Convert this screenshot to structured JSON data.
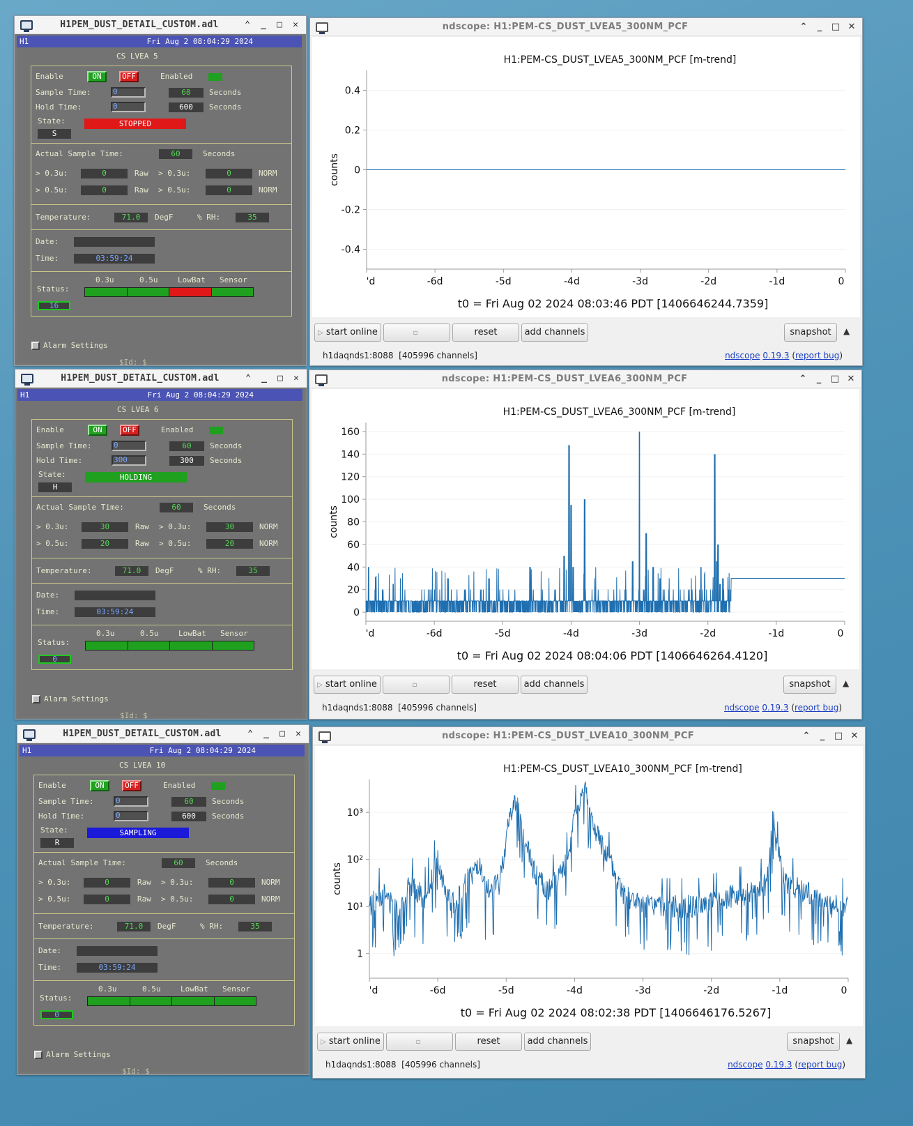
{
  "medm": [
    {
      "title": "H1PEM_DUST_DETAIL_CUSTOM.adl",
      "site": "H1",
      "datetime": "Fri Aug  2 08:04:29 2024",
      "section": "CS LVEA 5",
      "labels": {
        "enable": "Enable",
        "on": "ON",
        "off": "OFF",
        "enabled": "Enabled",
        "sample_time": "Sample Time:",
        "hold_time": "Hold Time:",
        "state": "State:",
        "seconds": "Seconds",
        "actual_sample": "Actual Sample Time:",
        "p03": "> 0.3u:",
        "p05": "> 0.5u:",
        "raw": "Raw",
        "norm": "NORM",
        "temperature": "Temperature:",
        "degf": "DegF",
        "rh": "% RH:",
        "date": "Date:",
        "time": "Time:",
        "status": "Status:",
        "s03": "0.3u",
        "s05": "0.5u",
        "lowbat": "LowBat",
        "sensor": "Sensor",
        "alarm": "Alarm Settings",
        "id": "$Id: $"
      },
      "sample_input": "0",
      "sample_value": "60",
      "hold_input": "0",
      "hold_value": "600",
      "state_text": "STOPPED",
      "state_color": "#e01818",
      "state_letter": "S",
      "actual": "60",
      "raw03": "0",
      "norm03": "0",
      "raw05": "0",
      "norm05": "0",
      "temp": "71.0",
      "rh": "35",
      "date_val": "",
      "time_val": "03:59:24",
      "status_colors": [
        "#1fa01f",
        "#1fa01f",
        "#e01818",
        "#1fa01f"
      ],
      "status_count": "16"
    },
    {
      "title": "H1PEM_DUST_DETAIL_CUSTOM.adl",
      "site": "H1",
      "datetime": "Fri Aug  2 08:04:29 2024",
      "section": "CS LVEA 6",
      "labels": {
        "enable": "Enable",
        "on": "ON",
        "off": "OFF",
        "enabled": "Enabled",
        "sample_time": "Sample Time:",
        "hold_time": "Hold Time:",
        "state": "State:",
        "seconds": "Seconds",
        "actual_sample": "Actual Sample Time:",
        "p03": "> 0.3u:",
        "p05": "> 0.5u:",
        "raw": "Raw",
        "norm": "NORM",
        "temperature": "Temperature:",
        "degf": "DegF",
        "rh": "% RH:",
        "date": "Date:",
        "time": "Time:",
        "status": "Status:",
        "s03": "0.3u",
        "s05": "0.5u",
        "lowbat": "LowBat",
        "sensor": "Sensor",
        "alarm": "Alarm Settings",
        "id": "$Id: $"
      },
      "sample_input": "0",
      "sample_value": "60",
      "hold_input": "300",
      "hold_value": "300",
      "state_text": "HOLDING",
      "state_color": "#1fa01f",
      "state_letter": "H",
      "actual": "60",
      "raw03": "30",
      "norm03": "30",
      "raw05": "20",
      "norm05": "20",
      "temp": "71.0",
      "rh": "35",
      "date_val": "",
      "time_val": "03:59:24",
      "status_colors": [
        "#1fa01f",
        "#1fa01f",
        "#1fa01f",
        "#1fa01f"
      ],
      "status_count": "0"
    },
    {
      "title": "H1PEM_DUST_DETAIL_CUSTOM.adl",
      "site": "H1",
      "datetime": "Fri Aug  2 08:04:29 2024",
      "section": "CS LVEA 10",
      "labels": {
        "enable": "Enable",
        "on": "ON",
        "off": "OFF",
        "enabled": "Enabled",
        "sample_time": "Sample Time:",
        "hold_time": "Hold Time:",
        "state": "State:",
        "seconds": "Seconds",
        "actual_sample": "Actual Sample Time:",
        "p03": "> 0.3u:",
        "p05": "> 0.5u:",
        "raw": "Raw",
        "norm": "NORM",
        "temperature": "Temperature:",
        "degf": "DegF",
        "rh": "% RH:",
        "date": "Date:",
        "time": "Time:",
        "status": "Status:",
        "s03": "0.3u",
        "s05": "0.5u",
        "lowbat": "LowBat",
        "sensor": "Sensor",
        "alarm": "Alarm Settings",
        "id": "$Id: $"
      },
      "sample_input": "0",
      "sample_value": "60",
      "hold_input": "0",
      "hold_value": "600",
      "state_text": "SAMPLING",
      "state_color": "#1a1ad8",
      "state_letter": "R",
      "actual": "60",
      "raw03": "0",
      "norm03": "0",
      "raw05": "0",
      "norm05": "0",
      "temp": "71.0",
      "rh": "35",
      "date_val": "",
      "time_val": "03:59:24",
      "status_colors": [
        "#1fa01f",
        "#1fa01f",
        "#1fa01f",
        "#1fa01f"
      ],
      "status_count": "0"
    }
  ],
  "ndscope": [
    {
      "window_title": "ndscope: H1:PEM-CS_DUST_LVEA5_300NM_PCF",
      "footer": {
        "start": "start online",
        "reset": "reset",
        "add": "add channels",
        "snapshot": "snapshot",
        "server": "h1daqnds1:8088",
        "channels": "[405996 channels]",
        "app": "ndscope",
        "version": "0.19.3",
        "bug": "report bug"
      }
    },
    {
      "window_title": "ndscope: H1:PEM-CS_DUST_LVEA6_300NM_PCF",
      "footer": {
        "start": "start online",
        "reset": "reset",
        "add": "add channels",
        "snapshot": "snapshot",
        "server": "h1daqnds1:8088",
        "channels": "[405996 channels]",
        "app": "ndscope",
        "version": "0.19.3",
        "bug": "report bug"
      }
    },
    {
      "window_title": "ndscope: H1:PEM-CS_DUST_LVEA10_300NM_PCF",
      "footer": {
        "start": "start online",
        "reset": "reset",
        "add": "add channels",
        "snapshot": "snapshot",
        "server": "h1daqnds1:8088",
        "channels": "[405996 channels]",
        "app": "ndscope",
        "version": "0.19.3",
        "bug": "report bug"
      }
    }
  ],
  "chart_data": [
    {
      "type": "line",
      "title": "H1:PEM-CS_DUST_LVEA5_300NM_PCF [m-trend]",
      "ylabel": "counts",
      "xlabel": "t0 = Fri Aug 02 2024 08:03:46 PDT [1406646244.7359]",
      "x_ticks": [
        "'d",
        "-6d",
        "-5d",
        "-4d",
        "-3d",
        "-2d",
        "-1d",
        "0"
      ],
      "y_ticks": [
        "0.4",
        "0.2",
        "0",
        "-0.2",
        "-0.4"
      ],
      "xlim": [
        -7,
        0
      ],
      "ylim": [
        -0.5,
        0.5
      ],
      "yscale": "linear",
      "series": [
        {
          "x": [
            -7,
            0
          ],
          "values": [
            0,
            0
          ]
        }
      ]
    },
    {
      "type": "line",
      "title": "H1:PEM-CS_DUST_LVEA6_300NM_PCF [m-trend]",
      "ylabel": "counts",
      "xlabel": "t0 = Fri Aug 02 2024 08:04:06 PDT [1406646264.4120]",
      "x_ticks": [
        "'d",
        "-6d",
        "-5d",
        "-4d",
        "-3d",
        "-2d",
        "-1d",
        "0"
      ],
      "y_ticks": [
        "160",
        "140",
        "120",
        "100",
        "80",
        "60",
        "40",
        "20",
        "0"
      ],
      "xlim": [
        -7,
        0
      ],
      "ylim": [
        -8,
        168
      ],
      "yscale": "linear",
      "series": [
        {
          "x": [
            -7,
            -6.96,
            -6.8,
            -6.6,
            -6.4,
            -6.2,
            -5.8,
            -5.6,
            -5.4,
            -5.2,
            -5.0,
            -4.8,
            -4.6,
            -4.1,
            -4.03,
            -4.0,
            -3.97,
            -3.8,
            -3.7,
            -3.6,
            -3.3,
            -3.1,
            -3.0,
            -2.9,
            -2.87,
            -2.8,
            -2.7,
            -2.5,
            -2.3,
            -2.1,
            -1.95,
            -1.9,
            -1.87,
            -1.85,
            -1.82,
            -1.79,
            -1.78,
            0
          ],
          "values": [
            10,
            40,
            10,
            25,
            10,
            20,
            30,
            10,
            20,
            30,
            10,
            20,
            40,
            50,
            148,
            95,
            40,
            100,
            20,
            20,
            10,
            45,
            160,
            70,
            10,
            40,
            30,
            10,
            20,
            40,
            20,
            140,
            45,
            60,
            25,
            5,
            30,
            30
          ]
        }
      ]
    },
    {
      "type": "line",
      "title": "H1:PEM-CS_DUST_LVEA10_300NM_PCF [m-trend]",
      "ylabel": "counts",
      "xlabel": "t0 = Fri Aug 02 2024 08:02:38 PDT [1406646176.5267]",
      "x_ticks": [
        "'d",
        "-6d",
        "-5d",
        "-4d",
        "-3d",
        "-2d",
        "-1d",
        "0"
      ],
      "y_ticks": [
        "10³",
        "10²",
        "10¹",
        "1"
      ],
      "xlim": [
        -7,
        0
      ],
      "ylim": [
        0.3,
        5000
      ],
      "yscale": "log",
      "series": [
        {
          "x": [
            -7,
            -6.8,
            -6.6,
            -6.4,
            -6.2,
            -6.0,
            -5.9,
            -5.8,
            -5.6,
            -5.4,
            -5.3,
            -5.1,
            -4.95,
            -4.85,
            -4.75,
            -4.6,
            -4.4,
            -4.1,
            -4.0,
            -3.85,
            -3.75,
            -3.5,
            -3.3,
            -3.0,
            -2.6,
            -2.2,
            -1.8,
            -1.4,
            -1.2,
            -1.15,
            -1.1,
            -1.05,
            -0.9,
            -0.6,
            -0.3,
            0
          ],
          "values": [
            10,
            20,
            8,
            30,
            15,
            100,
            25,
            10,
            30,
            80,
            20,
            30,
            800,
            2000,
            300,
            60,
            20,
            100,
            800,
            4000,
            600,
            100,
            20,
            10,
            10,
            10,
            15,
            20,
            30,
            100,
            800,
            200,
            30,
            20,
            10,
            10
          ]
        }
      ]
    }
  ]
}
